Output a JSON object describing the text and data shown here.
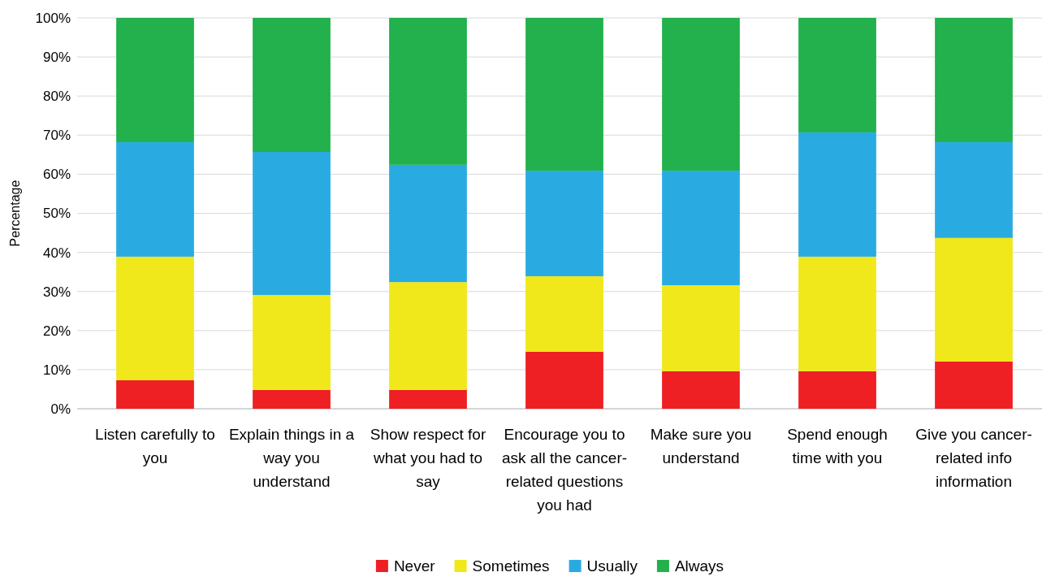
{
  "chart_data": {
    "type": "bar",
    "stacked": true,
    "ylabel": "Percentage",
    "categories": [
      "Listen carefully to you",
      "Explain things in a way you understand",
      "Show respect for what you had to say",
      "Encourage you to ask all the cancer-related questions you had",
      "Make sure you understand",
      "Spend enough time with you",
      "Give you cancer-related info information"
    ],
    "series": [
      {
        "name": "Never",
        "color": "#ee2024",
        "values": [
          7.3,
          4.8,
          4.8,
          14.6,
          9.6,
          9.6,
          12.1
        ]
      },
      {
        "name": "Sometimes",
        "color": "#f0e81a",
        "values": [
          31.6,
          24.3,
          27.6,
          19.3,
          22.0,
          29.3,
          31.6
        ]
      },
      {
        "name": "Usually",
        "color": "#29abe2",
        "values": [
          29.3,
          36.6,
          30.0,
          27.0,
          29.3,
          31.8,
          24.5
        ]
      },
      {
        "name": "Always",
        "color": "#22b14c",
        "values": [
          31.8,
          34.3,
          37.6,
          39.1,
          39.1,
          29.3,
          31.8
        ]
      }
    ],
    "ylim": [
      0,
      100
    ],
    "yticks": [
      {
        "value": 0,
        "label": "0%"
      },
      {
        "value": 10,
        "label": "10%"
      },
      {
        "value": 20,
        "label": "20%"
      },
      {
        "value": 30,
        "label": "30%"
      },
      {
        "value": 40,
        "label": "40%"
      },
      {
        "value": 50,
        "label": "50%"
      },
      {
        "value": 60,
        "label": "60%"
      },
      {
        "value": 70,
        "label": "70%"
      },
      {
        "value": 80,
        "label": "80%"
      },
      {
        "value": 90,
        "label": "90%"
      },
      {
        "value": 100,
        "label": "100%"
      }
    ],
    "grid": "y",
    "legend": "bottom"
  }
}
